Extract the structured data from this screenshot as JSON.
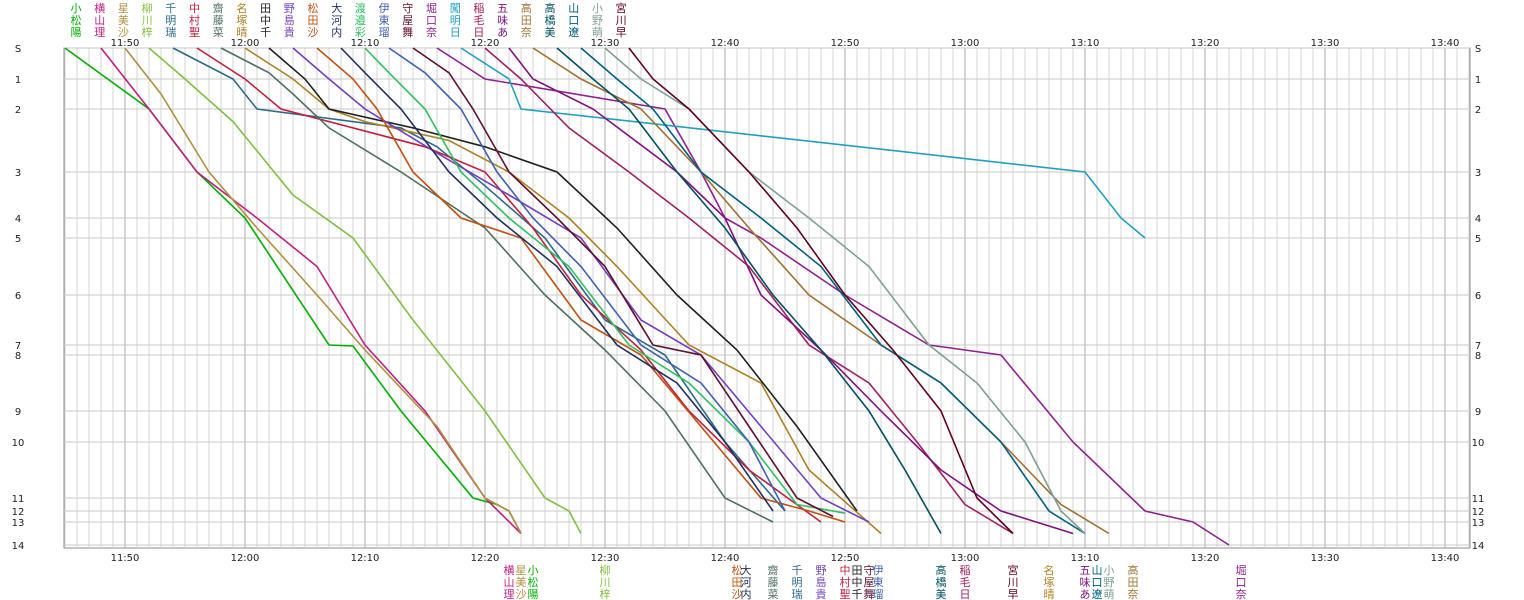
{
  "chart_data": {
    "type": "line",
    "x_unit": "time (HH:MM)",
    "x_ticks": [
      "11:50",
      "12:00",
      "12:10",
      "12:20",
      "12:30",
      "12:40",
      "12:50",
      "13:00",
      "13:10",
      "13:20",
      "13:30",
      "13:40"
    ],
    "x_range": [
      "11:40",
      "13:43"
    ],
    "y_ticks": [
      "S",
      "1",
      "2",
      "3",
      "4",
      "5",
      "6",
      "7",
      "8",
      "9",
      "10",
      "11",
      "12",
      "13",
      "14"
    ],
    "y_range": [
      "S",
      "14"
    ],
    "grid": true,
    "colors": {
      "小松陽": "#00b000",
      "横山理": "#c02080",
      "星美沙": "#b09040",
      "柳川梓": "#80c040",
      "千明瑞": "#2d6a8a",
      "中村聖": "#c02040",
      "齋藤菜": "#507060",
      "名塚晴": "#b08020",
      "田中千": "#202020",
      "野島貴": "#7040c0",
      "松田沙": "#c05010",
      "大河内": "#203060",
      "渡邉彩": "#30c060",
      "伊東瑠": "#4060b0",
      "守屋舞": "#601030",
      "堀口奈": "#902090",
      "闖明日": "#20a0c0",
      "稲毛日": "#a02060",
      "五味あ": "#801080",
      "高田奈": "#a07030",
      "高橋美": "#005060",
      "山口遼": "#006080",
      "小野萌": "#80a090",
      "宮川早": "#600020"
    },
    "series": [
      {
        "name": "小松陽",
        "x": [
          "11:45",
          "11:52",
          "11:56",
          "12:00",
          "12:07",
          "12:09",
          "12:13",
          "12:19",
          "12:21",
          "12:22",
          "12:23"
        ],
        "y": [
          "S",
          "2",
          "3",
          "4",
          "7",
          "7.1",
          "9",
          "11",
          "11.5",
          "12",
          "13.5"
        ]
      },
      {
        "name": "横山理",
        "x": [
          "11:48",
          "11:52",
          "11:56",
          "12:01",
          "12:06",
          "12:10",
          "12:15",
          "12:20",
          "12:23"
        ],
        "y": [
          "S",
          "2",
          "3",
          "4",
          "5.5",
          "7",
          "9",
          "11",
          "13.5"
        ]
      },
      {
        "name": "星美沙",
        "x": [
          "11:50",
          "11:53",
          "11:57",
          "12:01",
          "12:06",
          "12:10",
          "12:16",
          "12:20",
          "12:22",
          "12:23"
        ],
        "y": [
          "S",
          "1.5",
          "3",
          "4.5",
          "6",
          "7.5",
          "9.5",
          "11",
          "12",
          "13.5"
        ]
      },
      {
        "name": "柳川梓",
        "x": [
          "11:52",
          "11:55",
          "11:59",
          "12:04",
          "12:09",
          "12:14",
          "12:20",
          "12:25",
          "12:27",
          "12:28"
        ],
        "y": [
          "S",
          "1",
          "2.2",
          "3.5",
          "5",
          "6.5",
          "9",
          "11",
          "12",
          "13.5"
        ]
      },
      {
        "name": "千明瑞",
        "x": [
          "11:54",
          "11:59",
          "12:01",
          "12:13",
          "12:16",
          "12:20",
          "12:25",
          "12:30",
          "12:35",
          "12:40",
          "12:45"
        ],
        "y": [
          "S",
          "1",
          "2",
          "2.3",
          "2.6",
          "3.3",
          "5",
          "6.5",
          "8",
          "10",
          "12"
        ]
      },
      {
        "name": "中村聖",
        "x": [
          "11:56",
          "12:00",
          "12:03",
          "12:15",
          "12:20",
          "12:24",
          "12:28",
          "12:33",
          "12:37",
          "12:42",
          "12:48"
        ],
        "y": [
          "S",
          "1",
          "2",
          "2.6",
          "3",
          "4.5",
          "6",
          "7.5",
          "9",
          "10.5",
          "13"
        ]
      },
      {
        "name": "齋藤菜",
        "x": [
          "11:58",
          "12:02",
          "12:04",
          "12:07",
          "12:13",
          "12:20",
          "12:25",
          "12:30",
          "12:35",
          "12:40",
          "12:44"
        ],
        "y": [
          "S",
          "0.8",
          "1.5",
          "2.3",
          "3",
          "4.5",
          "6",
          "7.5",
          "9",
          "11",
          "13"
        ]
      },
      {
        "name": "名塚晴",
        "x": [
          "12:00",
          "12:04",
          "12:07",
          "12:10",
          "12:17",
          "12:22",
          "12:27",
          "12:31",
          "12:37",
          "12:43",
          "12:47",
          "12:53"
        ],
        "y": [
          "S",
          "1",
          "2",
          "2.2",
          "2.5",
          "3",
          "4",
          "5.5",
          "7",
          "8.5",
          "10.5",
          "13.5"
        ]
      },
      {
        "name": "田中千",
        "x": [
          "12:02",
          "12:05",
          "12:07",
          "12:14",
          "12:20",
          "12:26",
          "12:31",
          "12:36",
          "12:41",
          "12:46",
          "12:51"
        ],
        "y": [
          "S",
          "1",
          "2",
          "2.3",
          "2.6",
          "3",
          "4.5",
          "6",
          "7.5",
          "9.5",
          "12"
        ]
      },
      {
        "name": "野島貴",
        "x": [
          "12:04",
          "12:07",
          "12:10",
          "12:16",
          "12:22",
          "12:28",
          "12:33",
          "12:38",
          "12:43",
          "12:48",
          "12:52"
        ],
        "y": [
          "S",
          "1",
          "2",
          "2.7",
          "3.5",
          "5",
          "6.5",
          "8",
          "9.5",
          "11",
          "13"
        ]
      },
      {
        "name": "松田沙",
        "x": [
          "12:06",
          "12:09",
          "12:11",
          "12:14",
          "12:18",
          "12:23",
          "12:28",
          "12:33",
          "12:38",
          "12:43",
          "12:47",
          "12:50"
        ],
        "y": [
          "S",
          "1",
          "2",
          "3",
          "4",
          "5",
          "6.5",
          "8",
          "9.5",
          "11",
          "12",
          "13"
        ]
      },
      {
        "name": "大河内",
        "x": [
          "12:08",
          "12:10",
          "12:13",
          "12:17",
          "12:21",
          "12:26",
          "12:31",
          "12:36",
          "12:40",
          "12:44"
        ],
        "y": [
          "S",
          "0.8",
          "2",
          "3",
          "4",
          "5.5",
          "7",
          "8.5",
          "10",
          "12"
        ]
      },
      {
        "name": "渡邉彩",
        "x": [
          "12:10",
          "12:12",
          "12:15",
          "12:18",
          "12:22",
          "12:27",
          "12:32",
          "12:37",
          "12:42",
          "12:46",
          "12:50"
        ],
        "y": [
          "S",
          "0.8",
          "2",
          "3",
          "4",
          "5.5",
          "7",
          "8.5",
          "10",
          "11.5",
          "12.2"
        ]
      },
      {
        "name": "伊東瑠",
        "x": [
          "12:12",
          "12:15",
          "12:18",
          "12:21",
          "12:24",
          "12:28",
          "12:33",
          "12:38",
          "12:42",
          "12:45"
        ],
        "y": [
          "S",
          "0.8",
          "2",
          "3",
          "4",
          "5.5",
          "7",
          "8.5",
          "10",
          "12"
        ]
      },
      {
        "name": "守屋舞",
        "x": [
          "12:14",
          "12:17",
          "12:19",
          "12:22",
          "12:26",
          "12:30",
          "12:34",
          "12:38",
          "12:42",
          "12:46",
          "12:49"
        ],
        "y": [
          "S",
          "0.8",
          "2",
          "3",
          "4",
          "5.5",
          "7",
          "8",
          "9.5",
          "11",
          "12.5"
        ]
      },
      {
        "name": "堀口奈",
        "x": [
          "12:16",
          "12:20",
          "12:35",
          "12:38",
          "12:40",
          "12:43",
          "12:50",
          "12:57",
          "13:03",
          "13:09",
          "13:15",
          "13:19",
          "13:22"
        ],
        "y": [
          "S",
          "1",
          "2",
          "3",
          "4",
          "5",
          "6",
          "7",
          "8",
          "10",
          "12",
          "13",
          "14"
        ]
      },
      {
        "name": "闖明日",
        "x": [
          "12:18",
          "12:22",
          "12:23",
          "13:10",
          "13:13",
          "13:15"
        ],
        "y": [
          "S",
          "1",
          "2",
          "3",
          "4",
          "5"
        ]
      },
      {
        "name": "稲毛日",
        "x": [
          "12:20",
          "12:23",
          "12:27",
          "12:32",
          "12:37",
          "12:42",
          "12:47",
          "12:52",
          "12:56",
          "13:00",
          "13:04"
        ],
        "y": [
          "S",
          "1",
          "2.3",
          "3",
          "4",
          "5.5",
          "7",
          "8.5",
          "10",
          "11.5",
          "13.5"
        ]
      },
      {
        "name": "五味あ",
        "x": [
          "12:22",
          "12:24",
          "12:29",
          "12:36",
          "12:40",
          "12:43",
          "12:48",
          "12:53",
          "12:58",
          "13:03",
          "13:09"
        ],
        "y": [
          "S",
          "1",
          "2",
          "3",
          "4",
          "6",
          "7.5",
          "9",
          "10.5",
          "12",
          "13.5"
        ]
      },
      {
        "name": "高田奈",
        "x": [
          "12:24",
          "12:28",
          "12:33",
          "12:38",
          "12:42",
          "12:47",
          "12:53",
          "12:58",
          "13:03",
          "13:08",
          "13:12"
        ],
        "y": [
          "S",
          "1",
          "2",
          "3",
          "4.5",
          "6",
          "7",
          "8.5",
          "10",
          "11.5",
          "13.5"
        ]
      },
      {
        "name": "高橋美",
        "x": [
          "12:26",
          "12:29",
          "12:32",
          "12:36",
          "12:40",
          "12:44",
          "12:48",
          "12:52",
          "12:55",
          "12:58"
        ],
        "y": [
          "S",
          "1",
          "2",
          "3",
          "4.5",
          "6",
          "7.5",
          "9",
          "10.5",
          "13.5"
        ]
      },
      {
        "name": "山口遼",
        "x": [
          "12:28",
          "12:31",
          "12:34",
          "12:38",
          "12:43",
          "12:48",
          "12:53",
          "12:58",
          "13:03",
          "13:07",
          "13:10"
        ],
        "y": [
          "S",
          "1",
          "2",
          "3",
          "4",
          "5.5",
          "7",
          "8.5",
          "10",
          "12",
          "13.5"
        ]
      },
      {
        "name": "小野萌",
        "x": [
          "12:30",
          "12:33",
          "12:37",
          "12:42",
          "12:47",
          "12:52",
          "12:57",
          "13:01",
          "13:05",
          "13:08",
          "13:10"
        ],
        "y": [
          "S",
          "1",
          "2",
          "3",
          "4",
          "5.5",
          "7",
          "8.5",
          "10",
          "12",
          "13.5"
        ]
      },
      {
        "name": "宮川早",
        "x": [
          "12:32",
          "12:34",
          "12:37",
          "12:42",
          "12:46",
          "12:50",
          "12:54",
          "12:58",
          "13:01",
          "13:04"
        ],
        "y": [
          "S",
          "1",
          "2",
          "3",
          "4.5",
          "6",
          "7.5",
          "9",
          "11",
          "13.5"
        ]
      }
    ],
    "top_labels": [
      "小松陽",
      "横山理",
      "星美沙",
      "柳川梓",
      "千明瑞",
      "中村聖",
      "齋藤菜",
      "名塚晴",
      "田中千",
      "野島貴",
      "松田沙",
      "大河内",
      "渡邉彩",
      "伊東瑠",
      "守屋舞",
      "堀口奈",
      "闖明日",
      "稲毛日",
      "五味あ",
      "高田奈",
      "高橋美",
      "山口遼",
      "小野萌",
      "宮川早"
    ],
    "bottom_labels": [
      {
        "name": "横山理",
        "x": "12:22"
      },
      {
        "name": "星美沙",
        "x": "12:23"
      },
      {
        "name": "小松陽",
        "x": "12:24"
      },
      {
        "name": "柳川梓",
        "x": "12:30"
      },
      {
        "name": "松田沙",
        "x": "12:41"
      },
      {
        "name": "大河内",
        "x": "12:41"
      },
      {
        "name": "齋藤菜",
        "x": "12:44"
      },
      {
        "name": "千明瑞",
        "x": "12:46"
      },
      {
        "name": "野島貴",
        "x": "12:48"
      },
      {
        "name": "中村聖",
        "x": "12:50"
      },
      {
        "name": "田中千",
        "x": "12:51"
      },
      {
        "name": "守屋舞",
        "x": "12:52"
      },
      {
        "name": "伊東瑠",
        "x": "12:52"
      },
      {
        "name": "高橋美",
        "x": "12:58"
      },
      {
        "name": "稲毛日",
        "x": "13:00"
      },
      {
        "name": "宮川早",
        "x": "13:04"
      },
      {
        "name": "名塚晴",
        "x": "13:07"
      },
      {
        "name": "五味あ",
        "x": "13:10"
      },
      {
        "name": "山口遼",
        "x": "13:11"
      },
      {
        "name": "小野萌",
        "x": "13:12"
      },
      {
        "name": "高田奈",
        "x": "13:14"
      },
      {
        "name": "堀口奈",
        "x": "13:23"
      }
    ]
  }
}
